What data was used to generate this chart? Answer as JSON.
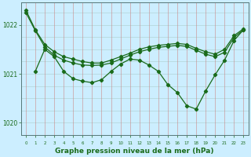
{
  "title": "Graphe pression niveau de la mer (hPa)",
  "background_color": "#cceeff",
  "grid_color_v": "#cc8888",
  "grid_color_h": "#aacccc",
  "line_color": "#1a6b1a",
  "ylim": [
    1019.75,
    1022.45
  ],
  "xlim": [
    -0.5,
    23.5
  ],
  "yticks": [
    1020,
    1021,
    1022
  ],
  "ylabel_fontsize": 6,
  "xlabel_fontsize": 6.5,
  "series1_x": [
    0,
    1,
    2,
    3,
    4,
    5,
    6,
    7,
    8,
    9,
    10,
    11,
    12,
    13,
    14,
    15,
    16,
    17,
    18,
    19,
    20,
    21,
    22,
    23
  ],
  "series1_y": [
    1022.3,
    1021.9,
    1021.6,
    1021.45,
    1021.35,
    1021.3,
    1021.25,
    1021.22,
    1021.22,
    1021.28,
    1021.35,
    1021.42,
    1021.5,
    1021.55,
    1021.58,
    1021.6,
    1021.62,
    1021.6,
    1021.52,
    1021.45,
    1021.4,
    1021.5,
    1021.78,
    1021.92
  ],
  "series2_x": [
    0,
    1,
    2,
    3,
    4,
    5,
    6,
    7,
    8,
    9,
    10,
    11,
    12,
    13,
    14,
    15,
    16,
    17,
    18,
    19,
    20,
    21,
    22,
    23
  ],
  "series2_y": [
    1022.25,
    1021.88,
    1021.55,
    1021.38,
    1021.28,
    1021.22,
    1021.18,
    1021.17,
    1021.18,
    1021.22,
    1021.3,
    1021.38,
    1021.45,
    1021.5,
    1021.54,
    1021.56,
    1021.58,
    1021.56,
    1021.48,
    1021.4,
    1021.35,
    1021.44,
    1021.74,
    1021.9
  ],
  "series3_x": [
    1,
    2,
    3,
    4,
    5,
    6,
    7,
    8,
    9,
    10,
    11,
    12,
    13,
    14,
    15,
    16,
    17,
    18,
    19,
    20,
    21,
    22,
    23
  ],
  "series3_y": [
    1021.05,
    1021.5,
    1021.35,
    1021.05,
    1020.9,
    1020.85,
    1020.82,
    1020.88,
    1021.05,
    1021.2,
    1021.3,
    1021.28,
    1021.18,
    1021.05,
    1020.78,
    1020.62,
    1020.35,
    1020.28,
    1020.65,
    1020.98,
    1021.28,
    1021.68,
    1021.9
  ]
}
